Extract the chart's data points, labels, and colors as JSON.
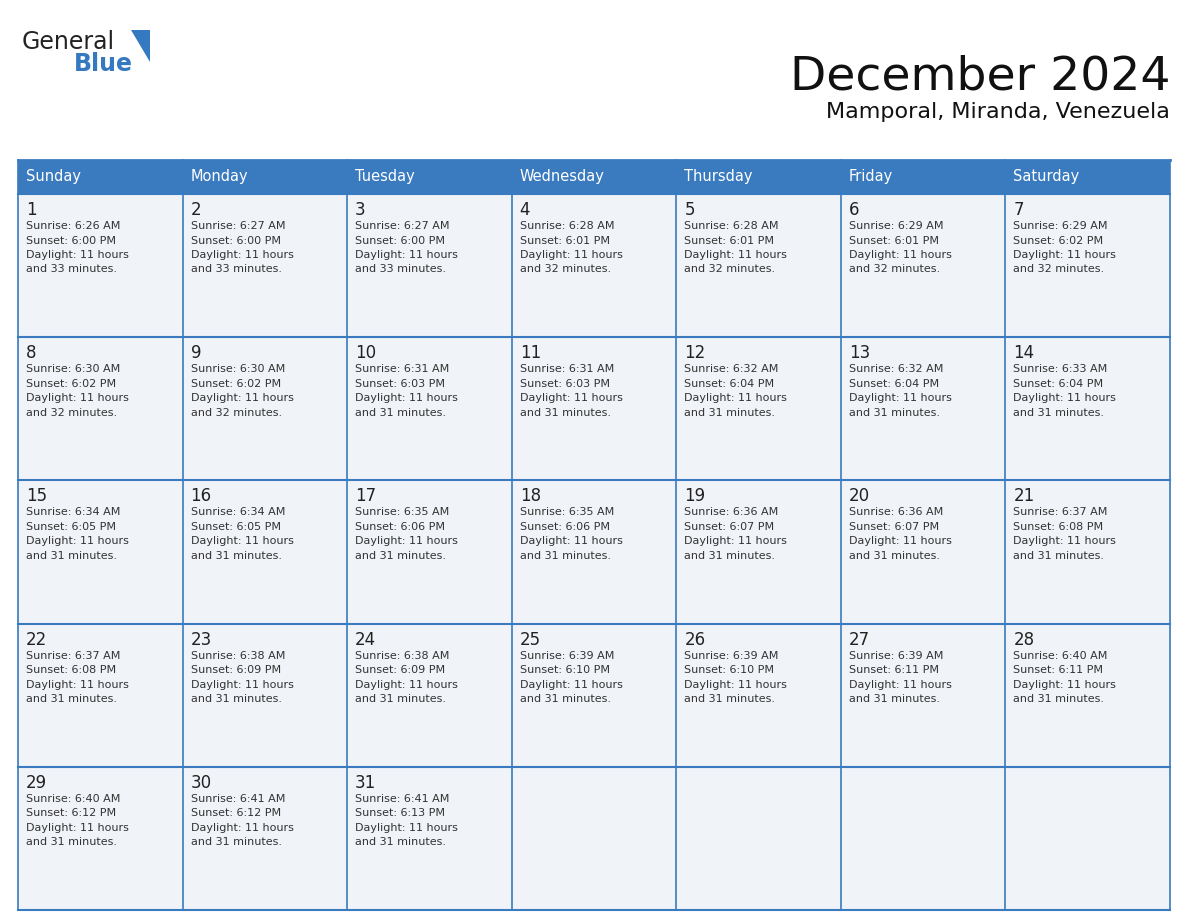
{
  "title": "December 2024",
  "subtitle": "Mamporal, Miranda, Venezuela",
  "header_color": "#3A7ABF",
  "header_text_color": "#FFFFFF",
  "header_font_size": 10.5,
  "title_font_size": 34,
  "subtitle_font_size": 16,
  "day_number_font_size": 12,
  "cell_text_font_size": 8.0,
  "days_of_week": [
    "Sunday",
    "Monday",
    "Tuesday",
    "Wednesday",
    "Thursday",
    "Friday",
    "Saturday"
  ],
  "weeks": [
    [
      {
        "day": 1,
        "sunrise": "6:26 AM",
        "sunset": "6:00 PM",
        "daylight_line1": "Daylight: 11 hours",
        "daylight_line2": "and 33 minutes."
      },
      {
        "day": 2,
        "sunrise": "6:27 AM",
        "sunset": "6:00 PM",
        "daylight_line1": "Daylight: 11 hours",
        "daylight_line2": "and 33 minutes."
      },
      {
        "day": 3,
        "sunrise": "6:27 AM",
        "sunset": "6:00 PM",
        "daylight_line1": "Daylight: 11 hours",
        "daylight_line2": "and 33 minutes."
      },
      {
        "day": 4,
        "sunrise": "6:28 AM",
        "sunset": "6:01 PM",
        "daylight_line1": "Daylight: 11 hours",
        "daylight_line2": "and 32 minutes."
      },
      {
        "day": 5,
        "sunrise": "6:28 AM",
        "sunset": "6:01 PM",
        "daylight_line1": "Daylight: 11 hours",
        "daylight_line2": "and 32 minutes."
      },
      {
        "day": 6,
        "sunrise": "6:29 AM",
        "sunset": "6:01 PM",
        "daylight_line1": "Daylight: 11 hours",
        "daylight_line2": "and 32 minutes."
      },
      {
        "day": 7,
        "sunrise": "6:29 AM",
        "sunset": "6:02 PM",
        "daylight_line1": "Daylight: 11 hours",
        "daylight_line2": "and 32 minutes."
      }
    ],
    [
      {
        "day": 8,
        "sunrise": "6:30 AM",
        "sunset": "6:02 PM",
        "daylight_line1": "Daylight: 11 hours",
        "daylight_line2": "and 32 minutes."
      },
      {
        "day": 9,
        "sunrise": "6:30 AM",
        "sunset": "6:02 PM",
        "daylight_line1": "Daylight: 11 hours",
        "daylight_line2": "and 32 minutes."
      },
      {
        "day": 10,
        "sunrise": "6:31 AM",
        "sunset": "6:03 PM",
        "daylight_line1": "Daylight: 11 hours",
        "daylight_line2": "and 31 minutes."
      },
      {
        "day": 11,
        "sunrise": "6:31 AM",
        "sunset": "6:03 PM",
        "daylight_line1": "Daylight: 11 hours",
        "daylight_line2": "and 31 minutes."
      },
      {
        "day": 12,
        "sunrise": "6:32 AM",
        "sunset": "6:04 PM",
        "daylight_line1": "Daylight: 11 hours",
        "daylight_line2": "and 31 minutes."
      },
      {
        "day": 13,
        "sunrise": "6:32 AM",
        "sunset": "6:04 PM",
        "daylight_line1": "Daylight: 11 hours",
        "daylight_line2": "and 31 minutes."
      },
      {
        "day": 14,
        "sunrise": "6:33 AM",
        "sunset": "6:04 PM",
        "daylight_line1": "Daylight: 11 hours",
        "daylight_line2": "and 31 minutes."
      }
    ],
    [
      {
        "day": 15,
        "sunrise": "6:34 AM",
        "sunset": "6:05 PM",
        "daylight_line1": "Daylight: 11 hours",
        "daylight_line2": "and 31 minutes."
      },
      {
        "day": 16,
        "sunrise": "6:34 AM",
        "sunset": "6:05 PM",
        "daylight_line1": "Daylight: 11 hours",
        "daylight_line2": "and 31 minutes."
      },
      {
        "day": 17,
        "sunrise": "6:35 AM",
        "sunset": "6:06 PM",
        "daylight_line1": "Daylight: 11 hours",
        "daylight_line2": "and 31 minutes."
      },
      {
        "day": 18,
        "sunrise": "6:35 AM",
        "sunset": "6:06 PM",
        "daylight_line1": "Daylight: 11 hours",
        "daylight_line2": "and 31 minutes."
      },
      {
        "day": 19,
        "sunrise": "6:36 AM",
        "sunset": "6:07 PM",
        "daylight_line1": "Daylight: 11 hours",
        "daylight_line2": "and 31 minutes."
      },
      {
        "day": 20,
        "sunrise": "6:36 AM",
        "sunset": "6:07 PM",
        "daylight_line1": "Daylight: 11 hours",
        "daylight_line2": "and 31 minutes."
      },
      {
        "day": 21,
        "sunrise": "6:37 AM",
        "sunset": "6:08 PM",
        "daylight_line1": "Daylight: 11 hours",
        "daylight_line2": "and 31 minutes."
      }
    ],
    [
      {
        "day": 22,
        "sunrise": "6:37 AM",
        "sunset": "6:08 PM",
        "daylight_line1": "Daylight: 11 hours",
        "daylight_line2": "and 31 minutes."
      },
      {
        "day": 23,
        "sunrise": "6:38 AM",
        "sunset": "6:09 PM",
        "daylight_line1": "Daylight: 11 hours",
        "daylight_line2": "and 31 minutes."
      },
      {
        "day": 24,
        "sunrise": "6:38 AM",
        "sunset": "6:09 PM",
        "daylight_line1": "Daylight: 11 hours",
        "daylight_line2": "and 31 minutes."
      },
      {
        "day": 25,
        "sunrise": "6:39 AM",
        "sunset": "6:10 PM",
        "daylight_line1": "Daylight: 11 hours",
        "daylight_line2": "and 31 minutes."
      },
      {
        "day": 26,
        "sunrise": "6:39 AM",
        "sunset": "6:10 PM",
        "daylight_line1": "Daylight: 11 hours",
        "daylight_line2": "and 31 minutes."
      },
      {
        "day": 27,
        "sunrise": "6:39 AM",
        "sunset": "6:11 PM",
        "daylight_line1": "Daylight: 11 hours",
        "daylight_line2": "and 31 minutes."
      },
      {
        "day": 28,
        "sunrise": "6:40 AM",
        "sunset": "6:11 PM",
        "daylight_line1": "Daylight: 11 hours",
        "daylight_line2": "and 31 minutes."
      }
    ],
    [
      {
        "day": 29,
        "sunrise": "6:40 AM",
        "sunset": "6:12 PM",
        "daylight_line1": "Daylight: 11 hours",
        "daylight_line2": "and 31 minutes."
      },
      {
        "day": 30,
        "sunrise": "6:41 AM",
        "sunset": "6:12 PM",
        "daylight_line1": "Daylight: 11 hours",
        "daylight_line2": "and 31 minutes."
      },
      {
        "day": 31,
        "sunrise": "6:41 AM",
        "sunset": "6:13 PM",
        "daylight_line1": "Daylight: 11 hours",
        "daylight_line2": "and 31 minutes."
      },
      null,
      null,
      null,
      null
    ]
  ],
  "logo_text1": "General",
  "logo_text2": "Blue",
  "logo_color1": "#222222",
  "logo_color2": "#3579C0",
  "triangle_color": "#3579C0",
  "bg_color": "#FFFFFF",
  "cell_bg_color": "#F0F3F8",
  "border_color": "#3A7ABF",
  "row_line_color": "#3A7ABF"
}
